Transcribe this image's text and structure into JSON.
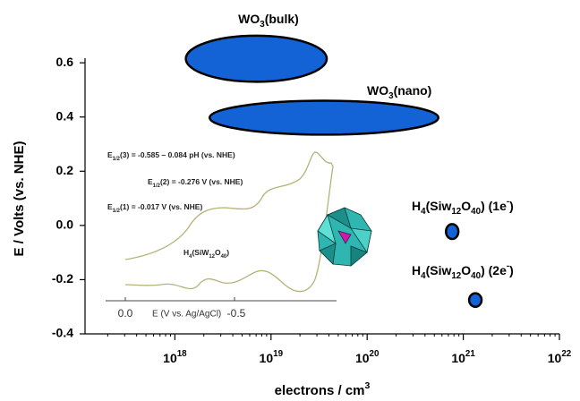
{
  "chart_data": {
    "type": "ellipse",
    "y_label": "E / Volts (vs. NHE)",
    "x_label": [
      {
        "text": "electrons / cm"
      },
      {
        "text": "3",
        "sup": true
      }
    ],
    "xscale": "log",
    "xlim": [
      1e+17,
      1e+22
    ],
    "xticks": [
      {
        "value": 1e+18,
        "label": "10",
        "exponent": "18"
      },
      {
        "value": 1e+19,
        "label": "10",
        "exponent": "19"
      },
      {
        "value": 1e+20,
        "label": "10",
        "exponent": "20"
      },
      {
        "value": 1e+21,
        "label": "10",
        "exponent": "21"
      },
      {
        "value": 1e+22,
        "label": "10",
        "exponent": "22"
      }
    ],
    "ylim": [
      -0.4,
      0.65
    ],
    "yticks": [
      {
        "value": -0.4,
        "label": "-0.4"
      },
      -0.2,
      {
        "value": 0,
        "label": "0.0"
      },
      0.2,
      0.4,
      0.6
    ],
    "series": [
      {
        "name": [
          {
            "text": "WO"
          },
          {
            "text": "3",
            "sub": true
          },
          {
            "text": "(bulk)"
          }
        ],
        "color": "#1463d6",
        "x_range": [
          1.3e+18,
          3.8e+19
        ],
        "y_range": [
          0.53,
          0.7
        ]
      },
      {
        "name": [
          {
            "text": "WO"
          },
          {
            "text": "3",
            "sub": true
          },
          {
            "text": "(nano)"
          }
        ],
        "color": "#1463d6",
        "x_range": [
          2.3e+18,
          5.5e+20
        ],
        "y_range": [
          0.335,
          0.46
        ]
      },
      {
        "name": [
          {
            "text": "H"
          },
          {
            "text": "4",
            "sub": true
          },
          {
            "text": "(Siw"
          },
          {
            "text": "12",
            "sub": true
          },
          {
            "text": "O"
          },
          {
            "text": "40",
            "sub": true
          },
          {
            "text": ") (1e"
          },
          {
            "text": "-",
            "sup": true
          },
          {
            "text": ")"
          }
        ],
        "color": "#1463d6",
        "x_range": [
          6.6e+20,
          8.9e+20
        ],
        "y_range": [
          -0.05,
          0.005
        ]
      },
      {
        "name": [
          {
            "text": "H"
          },
          {
            "text": "4",
            "sub": true
          },
          {
            "text": "(Siw"
          },
          {
            "text": "12",
            "sub": true
          },
          {
            "text": "O"
          },
          {
            "text": "40",
            "sub": true
          },
          {
            "text": ") (2e"
          },
          {
            "text": "-",
            "sup": true
          },
          {
            "text": ")"
          }
        ],
        "color": "#1463d6",
        "x_range": [
          1.15e+21,
          1.55e+21
        ],
        "y_range": [
          -0.3,
          -0.25
        ]
      }
    ],
    "inset": {
      "annotations": [
        [
          {
            "text": "E"
          },
          {
            "text": "1/2",
            "sub": true
          },
          {
            "text": "(3) = -0.585 – 0.084 pH (vs. NHE)"
          }
        ],
        [
          {
            "text": "E"
          },
          {
            "text": "1/2",
            "sub": true
          },
          {
            "text": "(2) = -0.276 V (vs. NHE)"
          }
        ],
        [
          {
            "text": "E"
          },
          {
            "text": "1/2",
            "sub": true
          },
          {
            "text": "(1) = -0.017 V (vs. NHE)"
          }
        ],
        [
          {
            "text": "H"
          },
          {
            "text": "4",
            "sub": true
          },
          {
            "text": "(SiW"
          },
          {
            "text": "12",
            "sub": true
          },
          {
            "text": "O"
          },
          {
            "text": "40",
            "sub": true
          },
          {
            "text": ")"
          }
        ]
      ],
      "x_label": "E (V vs. Ag/AgCl)",
      "xticks": [
        "0.0",
        "-0.5"
      ]
    }
  }
}
